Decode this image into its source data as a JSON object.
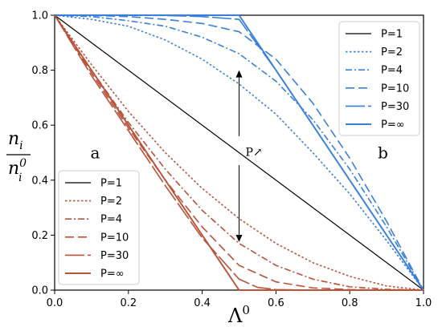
{
  "chart_data": {
    "type": "line",
    "title": "",
    "xlabel": "Λ",
    "xlabel_sup": "0",
    "ylabel": {
      "num": "n",
      "num_sub": "i",
      "den": "n",
      "den_sub": "i",
      "den_sup": "0"
    },
    "xlim": [
      0.0,
      1.0
    ],
    "ylim": [
      0.0,
      1.0
    ],
    "x_ticks": [
      "0.0",
      "0.2",
      "0.4",
      "0.6",
      "0.8",
      "1.0"
    ],
    "y_ticks": [
      "0.0",
      "0.2",
      "0.4",
      "0.6",
      "0.8",
      "1.0"
    ],
    "grid": false,
    "panel_labels": [
      "a",
      "b"
    ],
    "annotation": "P↗",
    "colors": {
      "black": "#000000",
      "blue": "#3a7fd9",
      "red": "#b8523a"
    },
    "legend_b": {
      "placement": "top-right",
      "entries": [
        "P=1",
        "P=2",
        "P=4",
        "P=10",
        "P=30",
        "P=∞"
      ]
    },
    "legend_a": {
      "placement": "lower-left",
      "entries": [
        "P=1",
        "P=2",
        "P=4",
        "P=10",
        "P=30",
        "P=∞"
      ]
    },
    "series": [
      {
        "panel": "a+b",
        "name": "P=1",
        "color": "black",
        "x": [
          0.0,
          1.0
        ],
        "y": [
          1.0,
          0.0
        ]
      },
      {
        "panel": "b",
        "name": "P=2",
        "color": "blue",
        "x": [
          0.0,
          0.1,
          0.2,
          0.3,
          0.4,
          0.5,
          0.6,
          0.7,
          0.8,
          0.9,
          1.0
        ],
        "y": [
          1.0,
          0.985,
          0.96,
          0.91,
          0.84,
          0.75,
          0.64,
          0.5,
          0.35,
          0.18,
          0.0
        ]
      },
      {
        "panel": "b",
        "name": "P=4",
        "color": "blue",
        "x": [
          0.0,
          0.1,
          0.2,
          0.3,
          0.4,
          0.5,
          0.6,
          0.7,
          0.8,
          0.9,
          1.0
        ],
        "y": [
          1.0,
          0.995,
          0.98,
          0.96,
          0.92,
          0.86,
          0.76,
          0.62,
          0.44,
          0.23,
          0.0
        ]
      },
      {
        "panel": "b",
        "name": "P=10",
        "color": "blue",
        "x": [
          0.0,
          0.1,
          0.2,
          0.3,
          0.4,
          0.5,
          0.6,
          0.7,
          0.8,
          0.9,
          1.0
        ],
        "y": [
          1.0,
          0.999,
          0.995,
          0.985,
          0.97,
          0.94,
          0.84,
          0.68,
          0.48,
          0.25,
          0.0
        ]
      },
      {
        "panel": "b",
        "name": "P=30",
        "color": "blue",
        "x": [
          0.0,
          0.1,
          0.2,
          0.3,
          0.4,
          0.5,
          0.6,
          0.7,
          0.8,
          0.9,
          1.0
        ],
        "y": [
          1.0,
          1.0,
          1.0,
          0.999,
          0.995,
          0.985,
          0.8,
          0.6,
          0.4,
          0.2,
          0.0
        ]
      },
      {
        "panel": "b",
        "name": "P=∞",
        "color": "blue",
        "x": [
          0.0,
          0.5,
          1.0
        ],
        "y": [
          1.0,
          1.0,
          0.0
        ]
      },
      {
        "panel": "a",
        "name": "P=2",
        "color": "red",
        "x": [
          0.0,
          0.1,
          0.2,
          0.3,
          0.4,
          0.5,
          0.6,
          0.7,
          0.8,
          0.9,
          1.0
        ],
        "y": [
          1.0,
          0.82,
          0.65,
          0.5,
          0.37,
          0.26,
          0.17,
          0.1,
          0.05,
          0.015,
          0.0
        ]
      },
      {
        "panel": "a",
        "name": "P=4",
        "color": "red",
        "x": [
          0.0,
          0.1,
          0.2,
          0.3,
          0.4,
          0.5,
          0.6,
          0.7,
          0.8,
          0.9,
          1.0
        ],
        "y": [
          1.0,
          0.8,
          0.61,
          0.44,
          0.29,
          0.17,
          0.09,
          0.04,
          0.012,
          0.003,
          0.0
        ]
      },
      {
        "panel": "a",
        "name": "P=10",
        "color": "red",
        "x": [
          0.0,
          0.1,
          0.2,
          0.3,
          0.4,
          0.5,
          0.6,
          0.7,
          0.8,
          0.9,
          1.0
        ],
        "y": [
          1.0,
          0.79,
          0.59,
          0.4,
          0.23,
          0.09,
          0.03,
          0.008,
          0.002,
          0.0,
          0.0
        ]
      },
      {
        "panel": "a",
        "name": "P=30",
        "color": "red",
        "x": [
          0.0,
          0.1,
          0.2,
          0.3,
          0.4,
          0.5,
          0.55,
          0.6,
          0.7,
          0.8,
          1.0
        ],
        "y": [
          1.0,
          0.78,
          0.58,
          0.38,
          0.19,
          0.04,
          0.01,
          0.002,
          0.0,
          0.0,
          0.0
        ]
      },
      {
        "panel": "a",
        "name": "P=∞",
        "color": "red",
        "x": [
          0.0,
          0.5,
          1.0
        ],
        "y": [
          1.0,
          0.0,
          0.0
        ]
      }
    ]
  }
}
